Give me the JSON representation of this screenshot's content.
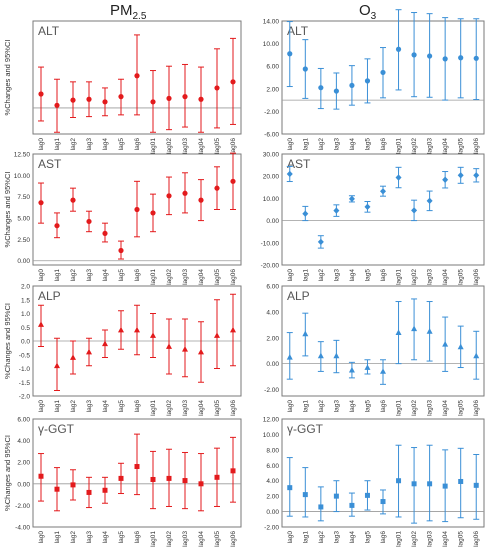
{
  "column_titles": [
    {
      "main": "PM",
      "sub": "2.5"
    },
    {
      "main": "O",
      "sub": "3"
    }
  ],
  "categories": [
    "lag0",
    "lag1",
    "lag2",
    "lag3",
    "lag4",
    "lag5",
    "lag6",
    "lag01",
    "lag02",
    "lag03",
    "lag04",
    "lag05",
    "lag06"
  ],
  "colors": {
    "red": "#e31a1c",
    "blue": "#3a8fd6"
  },
  "chart_data": [
    {
      "type": "scatter",
      "panel_label": "ALT",
      "pollutant": "PM2.5",
      "color": "#e31a1c",
      "marker": "circle",
      "ylabel": "%Changes and 95%CI",
      "show_ticks": false,
      "ylim": [
        -3,
        10
      ],
      "grid": false,
      "categories": [
        "lag0",
        "lag1",
        "lag2",
        "lag3",
        "lag4",
        "lag5",
        "lag6",
        "lag01",
        "lag02",
        "lag03",
        "lag04",
        "lag05",
        "lag06"
      ],
      "series": [
        {
          "point": [
            1.6,
            0.3,
            0.9,
            1.0,
            0.7,
            1.3,
            3.7,
            0.7,
            1.1,
            1.3,
            1.0,
            2.3,
            3.0
          ],
          "lower": [
            -1.5,
            -2.8,
            -1.1,
            -1.0,
            -0.9,
            -0.8,
            -0.8,
            -2.8,
            -2.5,
            -2.2,
            -2.8,
            -2.3,
            -1.9
          ],
          "upper": [
            4.7,
            3.3,
            3.0,
            3.0,
            2.3,
            3.3,
            8.4,
            4.3,
            4.8,
            5.0,
            4.7,
            6.8,
            8.0
          ]
        }
      ]
    },
    {
      "type": "scatter",
      "panel_label": "ALT",
      "pollutant": "O3",
      "color": "#3a8fd6",
      "marker": "circle",
      "ylabel": "",
      "show_ticks": true,
      "yticks": [
        "14.00",
        "10.00",
        "6.00",
        "2.00",
        "-2.00",
        "-6.00"
      ],
      "ylim": [
        -6,
        14
      ],
      "grid": false,
      "categories": [
        "lag0",
        "lag1",
        "lag2",
        "lag3",
        "lag4",
        "lag5",
        "lag6",
        "lag01",
        "lag02",
        "lag03",
        "lag04",
        "lag05",
        "lag06"
      ],
      "series": [
        {
          "point": [
            8.2,
            5.5,
            2.2,
            1.6,
            2.6,
            3.4,
            4.9,
            9.0,
            8.0,
            7.8,
            7.3,
            7.5,
            7.4
          ],
          "lower": [
            2.4,
            0.3,
            -1.5,
            -1.6,
            -0.9,
            -0.5,
            0.4,
            1.8,
            0.6,
            0.5,
            0.0,
            0.4,
            0.1
          ],
          "upper": [
            13.9,
            10.7,
            5.6,
            4.8,
            6.1,
            7.3,
            9.3,
            16.0,
            15.5,
            15.3,
            14.6,
            14.4,
            14.4
          ]
        }
      ]
    },
    {
      "type": "scatter",
      "panel_label": "AST",
      "pollutant": "PM2.5",
      "color": "#e31a1c",
      "marker": "circle",
      "ylabel": "%Changes and 95%CI",
      "show_ticks": true,
      "yticks": [
        "12.50",
        "10.00",
        "7.50",
        "5.00",
        "2.50",
        "0.00"
      ],
      "ylim": [
        -0.5,
        12.5
      ],
      "grid": false,
      "categories": [
        "lag0",
        "lag1",
        "lag2",
        "lag3",
        "lag4",
        "lag5",
        "lag6",
        "lag01",
        "lag02",
        "lag03",
        "lag04",
        "lag05",
        "lag06"
      ],
      "series": [
        {
          "point": [
            6.8,
            4.1,
            7.1,
            4.6,
            3.2,
            1.2,
            6.0,
            5.6,
            7.6,
            7.9,
            7.1,
            8.5,
            9.3
          ],
          "lower": [
            4.4,
            2.7,
            5.8,
            3.4,
            2.2,
            0.2,
            2.8,
            3.4,
            5.4,
            5.6,
            4.7,
            6.0,
            6.0
          ],
          "upper": [
            9.1,
            5.6,
            8.5,
            5.8,
            4.4,
            2.3,
            9.3,
            7.8,
            9.8,
            10.3,
            9.5,
            11.0,
            12.6
          ]
        }
      ]
    },
    {
      "type": "scatter",
      "panel_label": "AST",
      "pollutant": "O3",
      "color": "#3a8fd6",
      "marker": "diamond",
      "ylabel": "",
      "show_ticks": true,
      "yticks": [
        "30.00",
        "20.00",
        "10.00",
        "0.00",
        "-10.00",
        "-20.00"
      ],
      "ylim": [
        -20,
        30
      ],
      "grid": false,
      "categories": [
        "lag0",
        "lag1",
        "lag2",
        "lag3",
        "lag4",
        "lag5",
        "lag6",
        "lag01",
        "lag02",
        "lag03",
        "lag04",
        "lag05",
        "lag06"
      ],
      "series": [
        {
          "point": [
            21.0,
            3.1,
            -9.6,
            4.5,
            9.8,
            6.2,
            13.2,
            19.4,
            4.6,
            8.9,
            18.4,
            20.4,
            20.4
          ],
          "lower": [
            17.6,
            0.0,
            -12.4,
            1.9,
            8.4,
            3.8,
            11.0,
            14.8,
            0.0,
            4.5,
            14.7,
            16.8,
            17.4
          ],
          "upper": [
            24.4,
            6.4,
            -6.8,
            7.1,
            11.2,
            8.6,
            15.5,
            24.0,
            9.2,
            13.3,
            22.1,
            24.0,
            23.4
          ]
        }
      ]
    },
    {
      "type": "scatter",
      "panel_label": "ALP",
      "pollutant": "PM2.5",
      "color": "#e31a1c",
      "marker": "triangle",
      "ylabel": "%Changes and 95%CI",
      "show_ticks": true,
      "yticks": [
        "2.0",
        "1.5",
        "1.0",
        "0.5",
        "0.0",
        "-0.5",
        "-1.0",
        "-1.5",
        "-2.0"
      ],
      "ylim": [
        -2,
        2
      ],
      "grid": false,
      "categories": [
        "lag0",
        "lag1",
        "lag2",
        "lag3",
        "lag4",
        "lag5",
        "lag6",
        "lag01",
        "lag02",
        "lag03",
        "lag04",
        "lag05",
        "lag06"
      ],
      "series": [
        {
          "point": [
            0.6,
            -0.9,
            -0.6,
            -0.4,
            -0.1,
            0.4,
            0.4,
            0.2,
            -0.2,
            -0.3,
            -0.4,
            0.2,
            0.4
          ],
          "lower": [
            -0.2,
            -1.8,
            -1.2,
            -0.9,
            -0.6,
            -0.3,
            -0.5,
            -0.6,
            -1.2,
            -1.3,
            -1.5,
            -1.0,
            -0.9
          ],
          "upper": [
            1.3,
            0.1,
            0.0,
            0.1,
            0.4,
            1.1,
            1.3,
            1.0,
            0.8,
            0.8,
            0.7,
            1.5,
            1.7
          ]
        }
      ]
    },
    {
      "type": "scatter",
      "panel_label": "ALP",
      "pollutant": "O3",
      "color": "#3a8fd6",
      "marker": "triangle",
      "ylabel": "",
      "show_ticks": true,
      "yticks": [
        "6.00",
        "4.00",
        "2.00",
        "0.00",
        "-2.00"
      ],
      "ylim": [
        -2.5,
        6
      ],
      "grid": false,
      "categories": [
        "lag0",
        "lag1",
        "lag2",
        "lag3",
        "lag4",
        "lag5",
        "lag6",
        "lag01",
        "lag02",
        "lag03",
        "lag04",
        "lag05",
        "lag06"
      ],
      "series": [
        {
          "point": [
            0.5,
            2.3,
            0.6,
            0.6,
            -0.5,
            -0.3,
            -0.6,
            2.4,
            2.7,
            2.5,
            1.5,
            1.3,
            0.6
          ],
          "lower": [
            -1.2,
            0.6,
            -0.6,
            -0.7,
            -1.1,
            -0.8,
            -1.6,
            0.0,
            0.3,
            0.2,
            -0.6,
            -0.3,
            -1.2
          ],
          "upper": [
            2.4,
            3.9,
            1.7,
            1.8,
            0.1,
            0.3,
            0.3,
            4.8,
            5.0,
            4.8,
            3.6,
            2.9,
            2.5
          ]
        }
      ]
    },
    {
      "type": "scatter",
      "panel_label": "γ-GGT",
      "pollutant": "PM2.5",
      "color": "#e31a1c",
      "marker": "square",
      "ylabel": "%Changes and 95%CI",
      "show_ticks": true,
      "yticks": [
        "6.00",
        "4.00",
        "2.00",
        "0.00",
        "-2.00",
        "-4.00"
      ],
      "ylim": [
        -4,
        6
      ],
      "grid": false,
      "categories": [
        "lag0",
        "lag1",
        "lag2",
        "lag3",
        "lag4",
        "lag5",
        "lag6",
        "lag01",
        "lag02",
        "lag03",
        "lag04",
        "lag05",
        "lag06"
      ],
      "series": [
        {
          "point": [
            0.7,
            -0.5,
            -0.1,
            -0.8,
            -0.6,
            0.5,
            1.6,
            0.4,
            0.5,
            0.3,
            0.0,
            0.6,
            1.2
          ],
          "lower": [
            -1.6,
            -2.5,
            -1.5,
            -2.2,
            -1.8,
            -0.9,
            -1.0,
            -2.3,
            -2.1,
            -2.3,
            -2.5,
            -2.1,
            -1.7
          ],
          "upper": [
            2.8,
            1.5,
            1.3,
            0.6,
            0.6,
            1.9,
            4.6,
            3.0,
            3.2,
            2.9,
            2.8,
            3.3,
            4.3
          ]
        }
      ]
    },
    {
      "type": "scatter",
      "panel_label": "γ-GGT",
      "pollutant": "O3",
      "color": "#3a8fd6",
      "marker": "square",
      "ylabel": "",
      "show_ticks": true,
      "yticks": [
        "12.00",
        "10.00",
        "8.00",
        "6.00",
        "4.00",
        "2.00",
        "0.00",
        "-2.00"
      ],
      "ylim": [
        -2,
        12
      ],
      "grid": false,
      "categories": [
        "lag0",
        "lag1",
        "lag2",
        "lag3",
        "lag4",
        "lag5",
        "lag6",
        "lag01",
        "lag02",
        "lag03",
        "lag04",
        "lag05",
        "lag06"
      ],
      "series": [
        {
          "point": [
            3.1,
            2.2,
            0.6,
            2.0,
            0.8,
            2.1,
            1.3,
            4.0,
            3.6,
            3.6,
            3.3,
            3.9,
            3.4
          ],
          "lower": [
            -0.6,
            -0.7,
            -1.2,
            0.0,
            -0.6,
            0.2,
            -0.3,
            -0.7,
            -1.5,
            -1.2,
            -1.3,
            -0.8,
            -1.0
          ],
          "upper": [
            7.0,
            5.7,
            3.2,
            4.0,
            2.4,
            4.0,
            2.8,
            8.6,
            8.3,
            8.6,
            8.0,
            8.2,
            7.4
          ]
        }
      ]
    }
  ]
}
